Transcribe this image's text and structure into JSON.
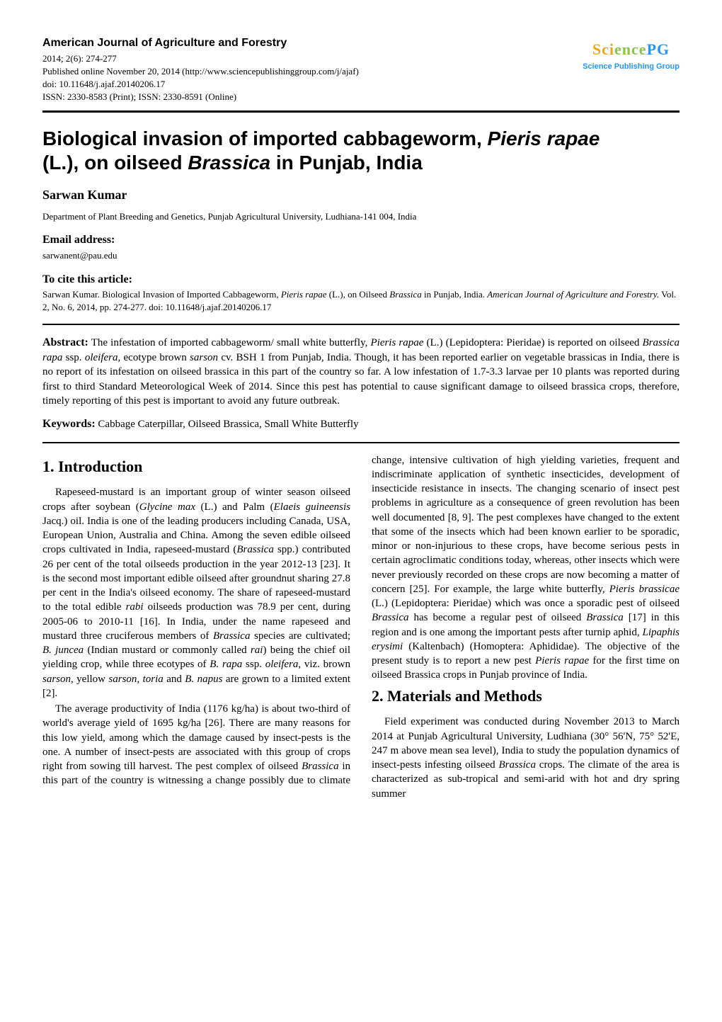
{
  "header": {
    "journal_name": "American Journal of Agriculture and Forestry",
    "issue": "2014; 2(6): 274-277",
    "published": "Published online November 20, 2014 (http://www.sciencepublishinggroup.com/j/ajaf)",
    "doi": "doi: 10.11648/j.ajaf.20140206.17",
    "issn": "ISSN: 2330-8583 (Print); ISSN: 2330-8591 (Online)",
    "logo_text_1": "Sci",
    "logo_text_2": "ence",
    "logo_text_3": "PG",
    "logo_subtitle": "Science Publishing Group"
  },
  "title": {
    "line1_pre": "Biological invasion of imported cabbageworm, ",
    "line1_italic": "Pieris rapae",
    "line2_pre": "(L.), on oilseed ",
    "line2_italic": "Brassica",
    "line2_post": " in Punjab, India"
  },
  "author": "Sarwan Kumar",
  "affiliation": "Department of Plant Breeding and Genetics, Punjab Agricultural University, Ludhiana-141 004, India",
  "email_label": "Email address:",
  "email": "sarwanent@pau.edu",
  "cite_label": "To cite this article:",
  "citation_1a": "Sarwan Kumar. Biological Invasion of Imported Cabbageworm, ",
  "citation_1b": "Pieris rapae",
  "citation_1c": " (L.), on Oilseed ",
  "citation_1d": "Brassica",
  "citation_1e": " in Punjab, India. ",
  "citation_1f": "American Journal of Agriculture and Forestry.",
  "citation_1g": " Vol. 2, No. 6, 2014, pp. 274-277. doi: 10.11648/j.ajaf.20140206.17",
  "abstract_label": "Abstract:",
  "abstract_1": " The infestation of imported cabbageworm/ small white butterfly, ",
  "abstract_2": "Pieris rapae",
  "abstract_3": " (L.) (Lepidoptera: Pieridae) is reported on oilseed ",
  "abstract_4": "Brassica rapa",
  "abstract_5": " ssp. ",
  "abstract_6": "oleifera,",
  "abstract_7": " ecotype brown ",
  "abstract_8": "sarson",
  "abstract_9": " cv. BSH 1 from Punjab, India. Though, it has been reported earlier on vegetable brassicas in India, there is no report of its infestation on oilseed brassica in this part of the country so far. A low infestation of 1.7-3.3 larvae per 10 plants was reported during first to third Standard Meteorological Week of 2014. Since this pest has potential to cause significant damage to oilseed brassica crops, therefore, timely reporting of this pest is important to avoid any future outbreak.",
  "keywords_label": "Keywords:",
  "keywords": " Cabbage Caterpillar, Oilseed Brassica, Small White Butterfly",
  "intro_heading": "1. Introduction",
  "intro_p1_a": "Rapeseed-mustard is an important group of winter season oilseed crops after soybean (",
  "intro_p1_b": "Glycine max",
  "intro_p1_c": " (L.) and Palm (",
  "intro_p1_d": "Elaeis guineensis",
  "intro_p1_e": " Jacq.) oil. India is one of the leading producers including Canada, USA, European Union, Australia and China. Among the seven edible oilseed crops cultivated in India, rapeseed-mustard (",
  "intro_p1_f": "Brassica",
  "intro_p1_g": " spp.) contributed 26 per cent of the total oilseeds production in the year 2012-13 [23]. It is the second most important edible oilseed after groundnut sharing 27.8 per cent in the India's oilseed economy. The share of rapeseed-mustard to the total edible ",
  "intro_p1_h": "rabi",
  "intro_p1_i": " oilseeds production was 78.9 per cent, during 2005-06 to 2010-11 [16]. In India, under the name rapeseed and mustard three cruciferous members of ",
  "intro_p1_j": "Brassica",
  "intro_p1_k": " species are cultivated; ",
  "intro_p1_l": "B. juncea",
  "intro_p1_m": " (Indian mustard or commonly called ",
  "intro_p1_n": "rai",
  "intro_p1_o": ") being the chief oil yielding crop, while three ecotypes of ",
  "intro_p1_p": "B. rapa",
  "intro_p1_q": " ssp. ",
  "intro_p1_r": "oleifera",
  "intro_p1_s": ", viz. brown ",
  "intro_p1_t": "sarson",
  "intro_p1_u": ", yellow ",
  "intro_p1_v": "sarson",
  "intro_p1_w": ", ",
  "intro_p1_x": "toria",
  "intro_p1_y": " and ",
  "intro_p1_z": "B. napus",
  "intro_p1_aa": " are grown to a limited extent [2].",
  "intro_p2_a": "The average productivity of India (1176 kg/ha) is about two-third of world's average yield of 1695 kg/ha [26]. There are many reasons for this low yield, among which the damage caused by insect-pests is the one. A number of insect-pests are associated with this group of crops right from sowing till harvest. The pest complex of oilseed ",
  "intro_p2_b": "Brassica",
  "intro_p2_c": " in this part of the country is witnessing a change possibly due to climate change, intensive cultivation of high yielding varieties, frequent and indiscriminate application of synthetic insecticides, development of insecticide resistance in insects. The changing scenario of insect pest problems in agriculture as a consequence of green revolution has been well documented [8, 9]. The pest complexes have changed to the extent that some of the insects which had been known earlier to be sporadic, minor or non-injurious to these crops, have become serious pests in certain agroclimatic conditions today, whereas, other insects which were never previously recorded on these crops are now becoming a matter of concern [25]. For example, the large white butterfly, ",
  "intro_p2_d": "Pieris brassicae",
  "intro_p2_e": " (L.) (Lepidoptera: Pieridae) which was once a sporadic pest of oilseed ",
  "intro_p2_f": "Brassica",
  "intro_p2_g": " has become a regular pest of oilseed ",
  "intro_p2_h": "Brassica",
  "intro_p2_i": " [17] in this region and is one among the important pests after turnip aphid, ",
  "intro_p2_j": "Lipaphis erysimi",
  "intro_p2_k": " (Kaltenbach) (Homoptera: Aphididae). The objective of the present study is to report a new pest ",
  "intro_p2_l": "Pieris rapae",
  "intro_p2_m": " for the first time on oilseed Brassica crops in Punjab province of India.",
  "methods_heading": "2. Materials and Methods",
  "methods_p1_a": "Field experiment was conducted during November 2013 to March 2014 at Punjab Agricultural University, Ludhiana (30° 56'N, 75° 52'E, 247 m above mean sea level), India to study the population dynamics of insect-pests infesting oilseed ",
  "methods_p1_b": "Brassica",
  "methods_p1_c": " crops. The climate of the area is characterized as sub-tropical and semi-arid with hot and dry spring summer"
}
